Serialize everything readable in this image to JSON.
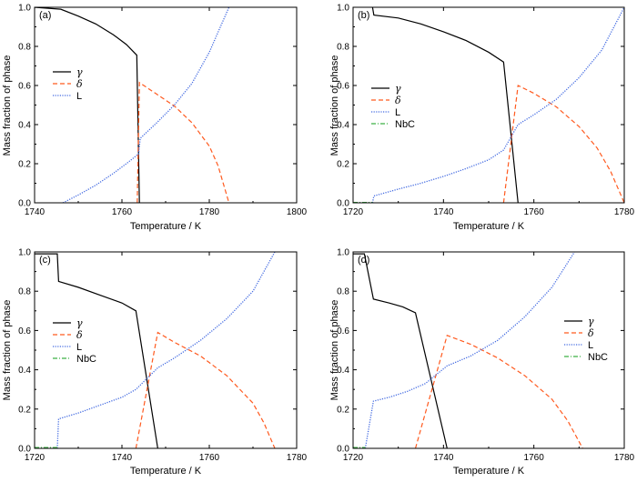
{
  "chart_data": [
    {
      "type": "line",
      "panel_label": "(a)",
      "xlabel": "Temperature / K",
      "ylabel": "Mass fraction of phase",
      "xlim": [
        1740,
        1800
      ],
      "ylim": [
        0,
        1.0
      ],
      "xticks": [
        1740,
        1760,
        1780,
        1800
      ],
      "yticks": [
        0.0,
        0.2,
        0.4,
        0.6,
        0.8,
        1.0
      ],
      "ytick_labels": [
        "0.0",
        "0.2",
        "0.4",
        "0.6",
        "0.8",
        "1.0"
      ],
      "legend_position": "left-middle",
      "series": [
        {
          "name": "γ",
          "color": "#000000",
          "dash": "solid",
          "x": [
            1740,
            1746,
            1750,
            1754,
            1758,
            1761,
            1763.4,
            1764.0
          ],
          "y": [
            1.0,
            0.99,
            0.955,
            0.915,
            0.86,
            0.81,
            0.755,
            0.0
          ]
        },
        {
          "name": "δ",
          "color": "#ff5a1f",
          "dash": "dashed",
          "x": [
            1763.5,
            1764.0,
            1768,
            1772,
            1776,
            1780,
            1782,
            1784.5
          ],
          "y": [
            0.0,
            0.615,
            0.555,
            0.495,
            0.41,
            0.29,
            0.19,
            0.0
          ]
        },
        {
          "name": "L",
          "color": "#4169e1",
          "dash": "dotted",
          "x": [
            1746.5,
            1750,
            1754,
            1758,
            1761,
            1763.8,
            1764.2,
            1768,
            1772,
            1776,
            1780,
            1784.5
          ],
          "y": [
            0.0,
            0.04,
            0.09,
            0.15,
            0.2,
            0.25,
            0.33,
            0.41,
            0.5,
            0.61,
            0.77,
            1.0
          ]
        }
      ]
    },
    {
      "type": "line",
      "panel_label": "(b)",
      "xlabel": "Temperature / K",
      "ylabel": "Mass fraction of phase",
      "xlim": [
        1720,
        1780
      ],
      "ylim": [
        0,
        1.0
      ],
      "xticks": [
        1720,
        1740,
        1760,
        1780
      ],
      "yticks": [
        0.0,
        0.2,
        0.4,
        0.6,
        0.8,
        1.0
      ],
      "ytick_labels": [
        "0.0",
        "0.2",
        "0.4",
        "0.6",
        "0.8",
        "1.0"
      ],
      "legend_position": "left-middle",
      "series": [
        {
          "name": "γ",
          "color": "#000000",
          "dash": "solid",
          "x": [
            1724.3,
            1724.6,
            1730,
            1735,
            1740,
            1745,
            1750,
            1753.3,
            1756.5
          ],
          "y": [
            1.0,
            0.96,
            0.945,
            0.915,
            0.875,
            0.83,
            0.77,
            0.72,
            0.0
          ]
        },
        {
          "name": "δ",
          "color": "#ff5a1f",
          "dash": "dashed",
          "x": [
            1753.3,
            1756.5,
            1760,
            1765,
            1770,
            1774,
            1777,
            1780
          ],
          "y": [
            0.0,
            0.6,
            0.56,
            0.49,
            0.39,
            0.28,
            0.16,
            0.0
          ]
        },
        {
          "name": "L",
          "color": "#4169e1",
          "dash": "dotted",
          "x": [
            1724.3,
            1724.6,
            1730,
            1735,
            1740,
            1745,
            1750,
            1753.3,
            1756.5,
            1760,
            1765,
            1770,
            1775,
            1780
          ],
          "y": [
            0.0,
            0.035,
            0.07,
            0.1,
            0.135,
            0.175,
            0.22,
            0.27,
            0.4,
            0.45,
            0.53,
            0.64,
            0.78,
            1.0
          ]
        },
        {
          "name": "NbC",
          "color": "#3cb043",
          "dash": "dashdot",
          "x": [
            1720,
            1724.3
          ],
          "y": [
            0.002,
            0.002
          ]
        }
      ]
    },
    {
      "type": "line",
      "panel_label": "(c)",
      "xlabel": "Temperature / K",
      "ylabel": "Mass fraction of phase",
      "xlim": [
        1720,
        1780
      ],
      "ylim": [
        0,
        1.0
      ],
      "xticks": [
        1720,
        1740,
        1760,
        1780
      ],
      "yticks": [
        0.0,
        0.2,
        0.4,
        0.6,
        0.8,
        1.0
      ],
      "ytick_labels": [
        "0.0",
        "0.2",
        "0.4",
        "0.6",
        "0.8",
        "1.0"
      ],
      "legend_position": "left-middle",
      "series": [
        {
          "name": "γ",
          "color": "#000000",
          "dash": "solid",
          "x": [
            1720,
            1725.2,
            1725.5,
            1730,
            1735,
            1740,
            1743.2,
            1748.2
          ],
          "y": [
            0.99,
            0.99,
            0.85,
            0.82,
            0.78,
            0.74,
            0.7,
            0.0
          ]
        },
        {
          "name": "δ",
          "color": "#ff5a1f",
          "dash": "dashed",
          "x": [
            1743.2,
            1748.2,
            1752,
            1758,
            1764,
            1770,
            1772.5,
            1775
          ],
          "y": [
            0.0,
            0.59,
            0.54,
            0.47,
            0.37,
            0.23,
            0.13,
            0.0
          ]
        },
        {
          "name": "L",
          "color": "#4169e1",
          "dash": "dotted",
          "x": [
            1725.2,
            1725.5,
            1730,
            1735,
            1740,
            1743.2,
            1748.2,
            1752,
            1758,
            1764,
            1770,
            1775
          ],
          "y": [
            0.0,
            0.15,
            0.18,
            0.22,
            0.26,
            0.3,
            0.41,
            0.46,
            0.55,
            0.66,
            0.8,
            1.0
          ]
        },
        {
          "name": "NbC",
          "color": "#3cb043",
          "dash": "dashdot",
          "x": [
            1720,
            1725.2
          ],
          "y": [
            0.004,
            0.004
          ]
        }
      ]
    },
    {
      "type": "line",
      "panel_label": "(d)",
      "xlabel": "Temperature / K",
      "ylabel": "Mass fraction of phase",
      "xlim": [
        1720,
        1780
      ],
      "ylim": [
        0,
        1.0
      ],
      "xticks": [
        1720,
        1740,
        1760,
        1780
      ],
      "yticks": [
        0.0,
        0.2,
        0.4,
        0.6,
        0.8,
        1.0
      ],
      "ytick_labels": [
        "0.0",
        "0.2",
        "0.4",
        "0.6",
        "0.8",
        "1.0"
      ],
      "legend_position": "right-middle",
      "series": [
        {
          "name": "γ",
          "color": "#000000",
          "dash": "solid",
          "x": [
            1720,
            1722.5,
            1724.5,
            1728,
            1731,
            1733.8,
            1740.8
          ],
          "y": [
            0.99,
            0.99,
            0.76,
            0.74,
            0.72,
            0.69,
            0.0
          ]
        },
        {
          "name": "δ",
          "color": "#ff5a1f",
          "dash": "dashed",
          "x": [
            1733.8,
            1740.8,
            1746,
            1752,
            1758,
            1764,
            1767.5,
            1770.8
          ],
          "y": [
            0.0,
            0.575,
            0.53,
            0.46,
            0.37,
            0.25,
            0.14,
            0.0
          ]
        },
        {
          "name": "L",
          "color": "#4169e1",
          "dash": "dotted",
          "x": [
            1722.7,
            1724.5,
            1728,
            1732,
            1736,
            1740.8,
            1746,
            1752,
            1758,
            1764,
            1769
          ],
          "y": [
            0.0,
            0.24,
            0.26,
            0.29,
            0.33,
            0.42,
            0.47,
            0.55,
            0.67,
            0.82,
            1.0
          ]
        },
        {
          "name": "NbC",
          "color": "#3cb043",
          "dash": "dashdot",
          "x": [
            1720,
            1722.7
          ],
          "y": [
            0.004,
            0.004
          ]
        }
      ]
    }
  ]
}
